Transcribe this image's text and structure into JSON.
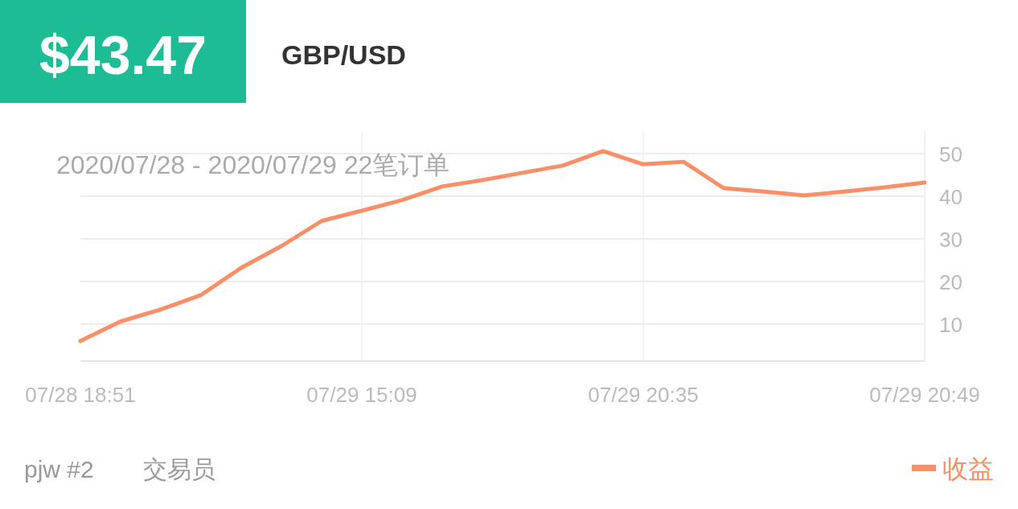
{
  "chart_data": {
    "type": "line",
    "title": "GBP/USD",
    "subtitle": "2020/07/28 - 2020/07/29  22笔订单",
    "annotations": [
      "$43.47",
      "pjw #2",
      "交易员"
    ],
    "categories": [
      "07/28 18:51",
      null,
      null,
      null,
      null,
      null,
      null,
      "07/29 15:09",
      null,
      null,
      null,
      null,
      null,
      null,
      "07/29 20:35",
      null,
      null,
      null,
      null,
      null,
      null,
      "07/29 20:49"
    ],
    "series": [
      {
        "name": "收益",
        "color": "#f88f67",
        "values": [
          6.0,
          10.6,
          13.4,
          16.8,
          23.2,
          28.3,
          34.2,
          36.6,
          39.1,
          42.3,
          43.8,
          45.5,
          47.2,
          50.6,
          47.5,
          48.1,
          41.9,
          41.1,
          40.2,
          41.1,
          42.1,
          43.2
        ]
      }
    ],
    "ylim": [
      1.3,
      55.3
    ],
    "yticks": [
      10,
      20,
      30,
      40,
      50
    ],
    "grid": true,
    "legend": "bottom right",
    "marker": "none",
    "line_style": "solid"
  }
}
